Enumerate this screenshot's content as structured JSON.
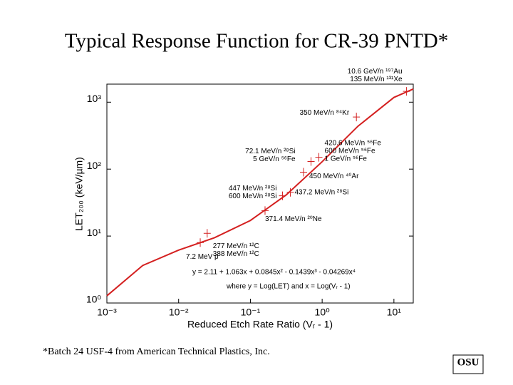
{
  "title": "Typical Response Function for CR-39 PNTD*",
  "footnote": "*Batch 24 USF-4 from American Technical Plastics, Inc.",
  "logo": "OSU",
  "chart_data": {
    "type": "line",
    "x_label": "Reduced Etch Rate Ratio (Vᵣ - 1)",
    "y_label": "LET₂₀₀ (keV/µm)",
    "equation": [
      "y = 2.11 + 1.063x + 0.0845x² - 0.1439x³ - 0.04269x⁴",
      "where y = Log(LET) and x = Log(Vᵣ - 1)"
    ],
    "log_x": true,
    "log_y": true,
    "xlim": [
      0.001,
      18.6
    ],
    "ylim": [
      1,
      1860
    ],
    "xticks": [
      {
        "value": 0.001,
        "label": "10⁻³"
      },
      {
        "value": 0.01,
        "label": "10⁻²"
      },
      {
        "value": 0.1,
        "label": "10⁻¹"
      },
      {
        "value": 1,
        "label": "10⁰"
      },
      {
        "value": 10,
        "label": "10¹"
      }
    ],
    "yticks": [
      {
        "value": 1,
        "label": "10⁰"
      },
      {
        "value": 10,
        "label": "10¹"
      },
      {
        "value": 100,
        "label": "10²"
      },
      {
        "value": 1000,
        "label": "10³"
      }
    ],
    "series": [
      {
        "color": "#d42020",
        "x": [
          0.001,
          0.00316,
          0.01,
          0.0316,
          0.1,
          0.316,
          1,
          3.16,
          10,
          18.6
        ],
        "values": [
          1.28,
          3.64,
          6.17,
          9.45,
          17.1,
          41.2,
          129,
          438,
          1177,
          1573
        ]
      }
    ],
    "annotations": [
      {
        "x": 0.02,
        "y": 8,
        "lines": [
          "7.2 MeV p"
        ]
      },
      {
        "x": 0.025,
        "y": 11,
        "lines": [
          "277 MeV/n ¹²C",
          "388 MeV/n ¹²C"
        ]
      },
      {
        "x": 0.16,
        "y": 24,
        "lines": [
          "371.4 MeV/n ²⁰Ne"
        ]
      },
      {
        "x": 0.28,
        "y": 40,
        "lines": [
          "447 MeV/n ²⁸Si",
          "600 MeV/n ²⁸Si"
        ]
      },
      {
        "x": 0.36,
        "y": 45,
        "lines": [
          "437.2 MeV/n ²⁸Si"
        ]
      },
      {
        "x": 0.55,
        "y": 90,
        "lines": [
          "450 MeV/n ⁴⁰Ar"
        ]
      },
      {
        "x": 0.7,
        "y": 130,
        "lines": [
          "72.1 MeV/n ²⁸Si",
          "5 GeV/n ⁵⁶Fe"
        ]
      },
      {
        "x": 0.9,
        "y": 150,
        "lines": [
          "420.6 MeV/n ⁵⁶Fe",
          "600 MeV/n ⁵⁶Fe",
          "1 GeV/n ⁵⁶Fe"
        ]
      },
      {
        "x": 3,
        "y": 600,
        "lines": [
          "350 MeV/n ⁸⁴Kr"
        ]
      },
      {
        "x": 15,
        "y": 1450,
        "lines": [
          "10.6 GeV/n ¹⁹⁷Au",
          "135 MeV/n ¹³¹Xe"
        ]
      }
    ]
  }
}
